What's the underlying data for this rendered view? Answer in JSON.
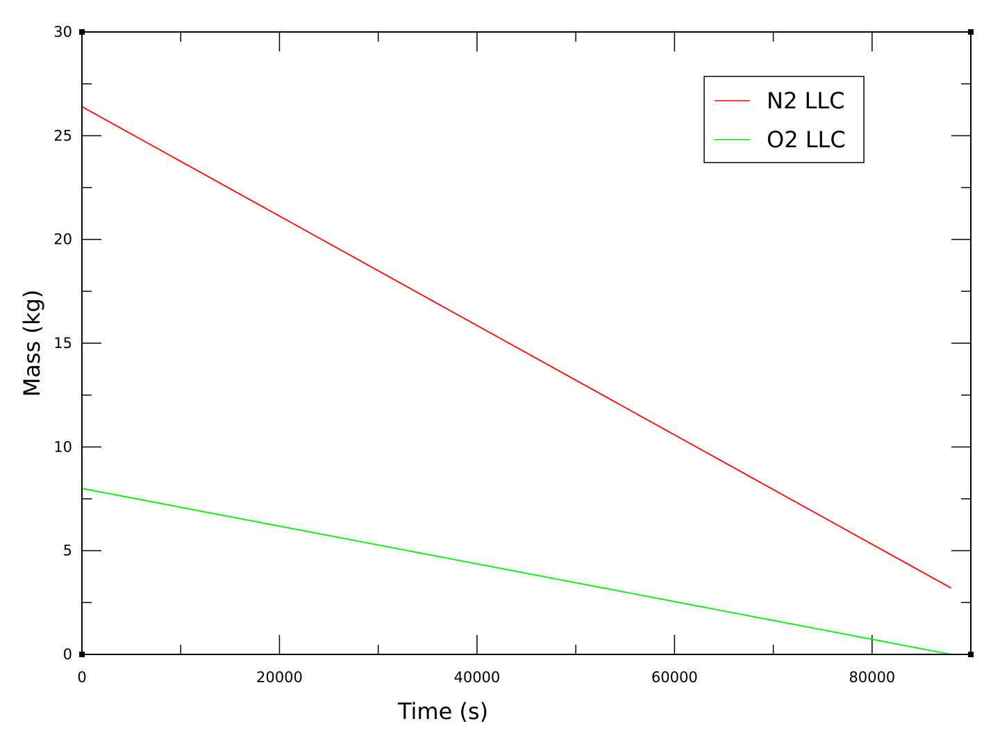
{
  "chart_data": {
    "type": "line",
    "title": "",
    "xlabel": "Time (s)",
    "ylabel": "Mass (kg)",
    "xlim": [
      0,
      90000
    ],
    "ylim": [
      0,
      30
    ],
    "x_ticks": [
      0,
      20000,
      40000,
      60000,
      80000
    ],
    "x_minor_ticks": [
      10000,
      30000,
      50000,
      70000
    ],
    "y_ticks": [
      0,
      5,
      10,
      15,
      20,
      25,
      30
    ],
    "y_minor_ticks": [
      2.5,
      7.5,
      12.5,
      17.5,
      22.5,
      27.5
    ],
    "x_tick_labels": [
      "0",
      "20000",
      "40000",
      "60000",
      "80000"
    ],
    "y_tick_labels": [
      "0",
      "5",
      "10",
      "15",
      "20",
      "25",
      "30"
    ],
    "grid": false,
    "legend_position": "top-right",
    "series": [
      {
        "name": "N2 LLC",
        "color": "#ff0000",
        "x": [
          0,
          88000
        ],
        "y": [
          26.4,
          3.2
        ]
      },
      {
        "name": "O2 LLC",
        "color": "#00ee00",
        "x": [
          0,
          88000
        ],
        "y": [
          8.0,
          0.0
        ]
      }
    ]
  }
}
